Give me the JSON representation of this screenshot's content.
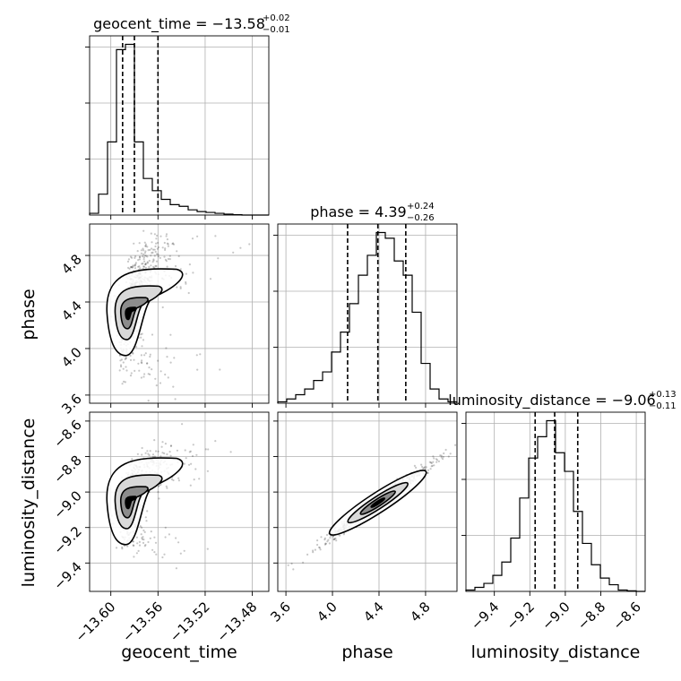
{
  "chart_data": {
    "type": "corner",
    "parameters": [
      "geocent_time",
      "phase",
      "luminosity_distance"
    ],
    "xlabels": {
      "geocent_time": "geocent_time",
      "phase": "phase",
      "luminosity_distance": "luminosity_distance"
    },
    "ylabels": {
      "phase": "phase",
      "luminosity_distance": "luminosity_distance"
    },
    "titles": {
      "geocent_time": {
        "name": "geocent_time",
        "median": "−13.58",
        "plus": "+0.02",
        "minus": "−0.01"
      },
      "phase": {
        "name": "phase",
        "median": "4.39",
        "plus": "+0.24",
        "minus": "−0.26"
      },
      "luminosity_distance": {
        "name": "luminosity_distance",
        "median": "−9.06",
        "plus": "+0.13",
        "minus": "−0.11"
      }
    },
    "ranges": {
      "geocent_time": [
        -13.618,
        -13.466
      ],
      "phase": [
        3.53,
        5.07
      ],
      "luminosity_distance": [
        -9.56,
        -8.55
      ]
    },
    "ticks": {
      "geocent_time": [
        -13.6,
        -13.56,
        -13.52,
        -13.48
      ],
      "phase": [
        3.6,
        4.0,
        4.4,
        4.8
      ],
      "luminosity_distance": [
        -9.4,
        -9.2,
        -9.0,
        -8.8,
        -8.6
      ]
    },
    "tick_labels": {
      "geocent_time": [
        "−13.60",
        "−13.56",
        "−13.52",
        "−13.48"
      ],
      "phase": [
        "3.6",
        "4.0",
        "4.4",
        "4.8"
      ],
      "luminosity_distance": [
        "−9.4",
        "−9.2",
        "−9.0",
        "−8.8",
        "−8.6"
      ]
    },
    "quantiles": {
      "geocent_time": [
        -13.59,
        -13.58,
        -13.56
      ],
      "phase": [
        4.13,
        4.39,
        4.63
      ],
      "luminosity_distance": [
        -9.17,
        -9.06,
        -8.93
      ]
    },
    "histograms": {
      "geocent_time": {
        "edges": [
          -13.618,
          -13.6104,
          -13.6028,
          -13.5952,
          -13.5876,
          -13.58,
          -13.5724,
          -13.5648,
          -13.5572,
          -13.5496,
          -13.542,
          -13.5344,
          -13.5268,
          -13.5192,
          -13.5116,
          -13.504,
          -13.4964,
          -13.4888,
          -13.4812,
          -13.4736,
          -13.466
        ],
        "counts": [
          1,
          12,
          42,
          95,
          98,
          42,
          21,
          14,
          9,
          6,
          5,
          3,
          2,
          1.5,
          1,
          0.5,
          0.2,
          0,
          0,
          0
        ]
      },
      "phase": {
        "edges": [
          3.53,
          3.607,
          3.684,
          3.761,
          3.838,
          3.915,
          3.992,
          4.069,
          4.146,
          4.223,
          4.3,
          4.377,
          4.454,
          4.531,
          4.608,
          4.685,
          4.762,
          4.839,
          4.916,
          4.993,
          5.07
        ],
        "counts": [
          0.5,
          1.5,
          3,
          5,
          8,
          11,
          18,
          25,
          35,
          45,
          52,
          60,
          58,
          50,
          45,
          32,
          14,
          5,
          1.5,
          0.5
        ]
      },
      "luminosity_distance": {
        "edges": [
          -9.56,
          -9.5095,
          -9.459,
          -9.4085,
          -9.358,
          -9.3075,
          -9.257,
          -9.2065,
          -9.156,
          -9.1055,
          -9.055,
          -9.0045,
          -8.954,
          -8.9035,
          -8.853,
          -8.8025,
          -8.752,
          -8.7015,
          -8.651,
          -8.6005,
          -8.55
        ],
        "counts": [
          0.5,
          1.5,
          3,
          6,
          11,
          20,
          35,
          50,
          58,
          64,
          52,
          45,
          30,
          18,
          10,
          5,
          2.5,
          0.5,
          0.2,
          0
        ]
      }
    },
    "scatter_2d": [
      {
        "x": "geocent_time",
        "y": "phase",
        "mean": [
          -13.585,
          4.3
        ],
        "sigma": [
          0.008,
          0.18
        ],
        "curve": "banana"
      },
      {
        "x": "geocent_time",
        "y": "luminosity_distance",
        "mean": [
          -13.585,
          -9.06
        ],
        "sigma": [
          0.008,
          0.085
        ],
        "curve": "banana"
      },
      {
        "x": "phase",
        "y": "luminosity_distance",
        "mean": [
          4.39,
          -9.06
        ],
        "sigma": [
          0.24,
          0.02
        ],
        "curve": "linear"
      }
    ],
    "grid": true
  }
}
